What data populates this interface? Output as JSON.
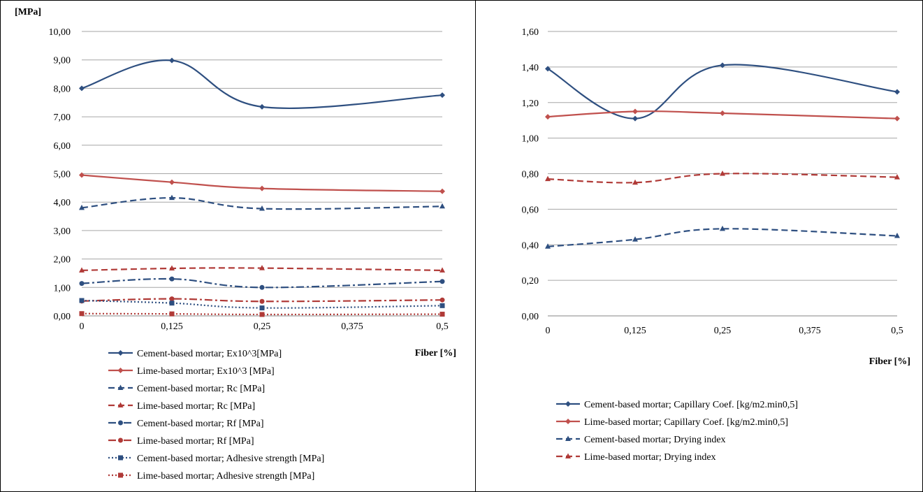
{
  "charts": [
    {
      "ylabel": "[MPa]",
      "xlabel": "Fiber [%]",
      "yticks": [
        "0,00",
        "1,00",
        "2,00",
        "3,00",
        "4,00",
        "5,00",
        "6,00",
        "7,00",
        "8,00",
        "9,00",
        "10,00"
      ],
      "xticks": [
        "0",
        "0,125",
        "0,25",
        "0,375",
        "0,5"
      ]
    },
    {
      "ylabel": "",
      "xlabel": "Fiber [%]",
      "yticks": [
        "0,00",
        "0,20",
        "0,40",
        "0,60",
        "0,80",
        "1,00",
        "1,20",
        "1,40",
        "1,60"
      ],
      "xticks": [
        "0",
        "0,125",
        "0,25",
        "0,375",
        "0,5"
      ]
    }
  ],
  "chart_data": [
    {
      "type": "line",
      "ylabel": "[MPa]",
      "xlabel": "Fiber [%]",
      "xlim": [
        0,
        0.5
      ],
      "ylim": [
        0,
        10
      ],
      "x": [
        0,
        0.125,
        0.25,
        0.5
      ],
      "grid": true,
      "legend_position": "bottom",
      "series": [
        {
          "name": "Cement-based mortar; Ex10^3[MPa]",
          "values": [
            8.0,
            8.98,
            7.35,
            7.76
          ],
          "color": "#2e4f80",
          "dash": "solid",
          "marker": "diamond"
        },
        {
          "name": "Lime-based mortar; Ex10^3 [MPa]",
          "values": [
            4.95,
            4.7,
            4.48,
            4.38
          ],
          "color": "#c0504d",
          "dash": "solid",
          "marker": "diamond"
        },
        {
          "name": "Cement-based mortar; Rc [MPa]",
          "values": [
            3.8,
            4.15,
            3.77,
            3.85
          ],
          "color": "#2e4f80",
          "dash": "dash",
          "marker": "triangle"
        },
        {
          "name": "Lime-based mortar; Rc [MPa]",
          "values": [
            1.6,
            1.67,
            1.68,
            1.6
          ],
          "color": "#b03a37",
          "dash": "dash",
          "marker": "triangle"
        },
        {
          "name": "Cement-based mortar; Rf [MPa]",
          "values": [
            1.14,
            1.3,
            1.0,
            1.21
          ],
          "color": "#2e4f80",
          "dash": "dashdot",
          "marker": "circle"
        },
        {
          "name": "Lime-based mortar; Rf [MPa]",
          "values": [
            0.52,
            0.6,
            0.51,
            0.56
          ],
          "color": "#b03a37",
          "dash": "dashdot",
          "marker": "circle"
        },
        {
          "name": "Cement-based mortar; Adhesive strength [MPa]",
          "values": [
            0.54,
            0.45,
            0.28,
            0.36
          ],
          "color": "#2e4f80",
          "dash": "dot",
          "marker": "square"
        },
        {
          "name": "Lime-based mortar; Adhesive strength [MPa]",
          "values": [
            0.08,
            0.07,
            0.05,
            0.06
          ],
          "color": "#b03a37",
          "dash": "dot",
          "marker": "square"
        }
      ]
    },
    {
      "type": "line",
      "ylabel": "",
      "xlabel": "Fiber [%]",
      "xlim": [
        0,
        0.5
      ],
      "ylim": [
        0,
        1.6
      ],
      "x": [
        0,
        0.125,
        0.25,
        0.5
      ],
      "grid": true,
      "legend_position": "bottom",
      "series": [
        {
          "name": "Cement-based mortar; Capillary Coef. [kg/m2.min0,5]",
          "values": [
            1.39,
            1.11,
            1.41,
            1.26
          ],
          "color": "#2e4f80",
          "dash": "solid",
          "marker": "diamond"
        },
        {
          "name": "Lime-based mortar; Capillary Coef. [kg/m2.min0,5]",
          "values": [
            1.12,
            1.15,
            1.14,
            1.11
          ],
          "color": "#c0504d",
          "dash": "solid",
          "marker": "diamond"
        },
        {
          "name": "Cement-based mortar; Drying index",
          "values": [
            0.39,
            0.43,
            0.49,
            0.45
          ],
          "color": "#2e4f80",
          "dash": "dash",
          "marker": "triangle"
        },
        {
          "name": "Lime-based mortar; Drying index",
          "values": [
            0.77,
            0.75,
            0.8,
            0.78
          ],
          "color": "#b03a37",
          "dash": "dash",
          "marker": "triangle"
        }
      ]
    }
  ]
}
